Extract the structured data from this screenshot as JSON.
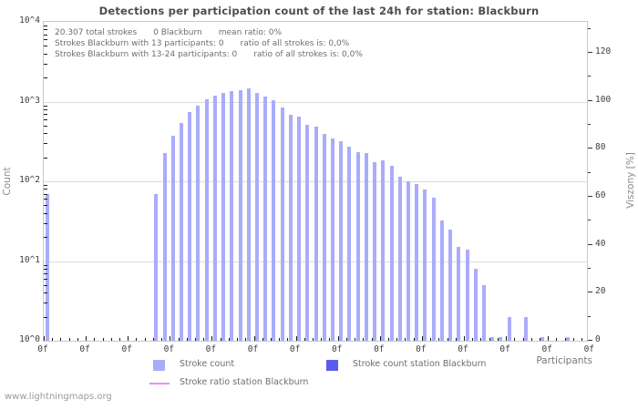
{
  "page": {
    "watermark": "www.lightningmaps.org"
  },
  "annotation": {
    "line1": [
      "20.307 total strokes",
      "0 Blackburn",
      "mean ratio: 0%"
    ],
    "line2": [
      "Strokes Blackburn with 13 participants: 0",
      "ratio of all strokes is: 0,0%"
    ],
    "line3": [
      "Strokes Blackburn with 13-24 participants: 0",
      "ratio of all strokes is: 0,0%"
    ]
  },
  "legend": {
    "items": [
      {
        "label": "Stroke count",
        "type": "square",
        "color": "#aaacfa"
      },
      {
        "label": "Stroke ratio station Blackburn",
        "type": "line",
        "color": "#ee8cee"
      },
      {
        "label": "Stroke count station Blackburn",
        "type": "square",
        "color": "#5a5cf0"
      }
    ]
  },
  "chart_data": {
    "type": "bar",
    "title": "Detections per participation count of the last 24h for station: Blackburn",
    "xlabel": "Participants",
    "ylabel": "Count",
    "ylabel_right": "Viszony [%]",
    "y_scale": "log10",
    "ylim": [
      1,
      10000
    ],
    "y_ticks_left": [
      "10^0",
      "10^1",
      "10^2",
      "10^3",
      "10^4"
    ],
    "y_ticks_right": [
      0,
      20,
      40,
      60,
      80,
      100,
      120
    ],
    "y_right_lim": [
      0,
      133
    ],
    "grid": "horizontal-decades",
    "legend_position": "bottom",
    "x_axis": {
      "unit_max": 64,
      "major_every": 5,
      "major_label": "0f",
      "num_major_labels": 14
    },
    "colors": {
      "stroke_count": "#aaacfa",
      "station_count": "#5a5cf0",
      "ratio_line": "#ee8cee"
    },
    "series": [
      {
        "name": "Stroke count",
        "points": [
          {
            "participants": 0,
            "strokes": 70
          },
          {
            "participants": 13,
            "strokes": 70
          },
          {
            "participants": 14,
            "strokes": 225
          },
          {
            "participants": 15,
            "strokes": 370
          },
          {
            "participants": 16,
            "strokes": 535
          },
          {
            "participants": 17,
            "strokes": 730
          },
          {
            "participants": 18,
            "strokes": 890
          },
          {
            "participants": 19,
            "strokes": 1080
          },
          {
            "participants": 20,
            "strokes": 1200
          },
          {
            "participants": 21,
            "strokes": 1280
          },
          {
            "participants": 22,
            "strokes": 1340
          },
          {
            "participants": 23,
            "strokes": 1400
          },
          {
            "participants": 24,
            "strokes": 1450
          },
          {
            "participants": 25,
            "strokes": 1300
          },
          {
            "participants": 26,
            "strokes": 1150
          },
          {
            "participants": 27,
            "strokes": 1030
          },
          {
            "participants": 28,
            "strokes": 850
          },
          {
            "participants": 29,
            "strokes": 690
          },
          {
            "participants": 30,
            "strokes": 640
          },
          {
            "participants": 31,
            "strokes": 505
          },
          {
            "participants": 32,
            "strokes": 480
          },
          {
            "participants": 33,
            "strokes": 390
          },
          {
            "participants": 34,
            "strokes": 340
          },
          {
            "participants": 35,
            "strokes": 315
          },
          {
            "participants": 36,
            "strokes": 270
          },
          {
            "participants": 37,
            "strokes": 230
          },
          {
            "participants": 38,
            "strokes": 225
          },
          {
            "participants": 39,
            "strokes": 175
          },
          {
            "participants": 40,
            "strokes": 182
          },
          {
            "participants": 41,
            "strokes": 155
          },
          {
            "participants": 42,
            "strokes": 114
          },
          {
            "participants": 43,
            "strokes": 100
          },
          {
            "participants": 44,
            "strokes": 93
          },
          {
            "participants": 45,
            "strokes": 79
          },
          {
            "participants": 46,
            "strokes": 63
          },
          {
            "participants": 47,
            "strokes": 32
          },
          {
            "participants": 48,
            "strokes": 25
          },
          {
            "participants": 49,
            "strokes": 15
          },
          {
            "participants": 50,
            "strokes": 14
          },
          {
            "participants": 51,
            "strokes": 8
          },
          {
            "participants": 52,
            "strokes": 5
          },
          {
            "participants": 53,
            "strokes": 1.1
          },
          {
            "participants": 54,
            "strokes": 1.1
          },
          {
            "participants": 55,
            "strokes": 2
          },
          {
            "participants": 57,
            "strokes": 2
          },
          {
            "participants": 59,
            "strokes": 1.1
          },
          {
            "participants": 62,
            "strokes": 1.1
          }
        ]
      },
      {
        "name": "Stroke count station Blackburn",
        "points": []
      },
      {
        "name": "Stroke ratio station Blackburn",
        "points": []
      }
    ]
  }
}
